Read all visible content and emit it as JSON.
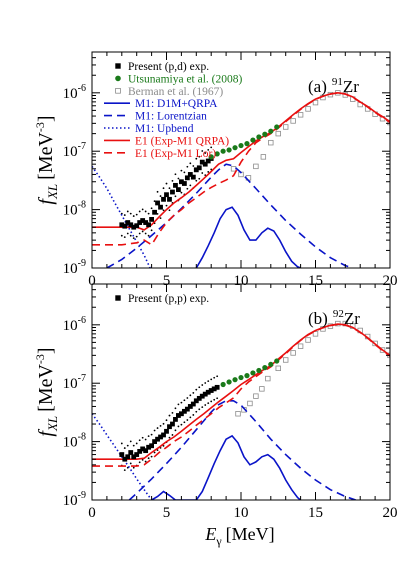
{
  "figure": {
    "xlabel_symbol": "E",
    "xlabel_subscript": "γ",
    "xlabel_unit": "[MeV]",
    "ylabel_symbol": "f",
    "ylabel_subscript": "XL",
    "ylabel_unit": "[MeV",
    "ylabel_exponent": "-3",
    "ylabel_close": "]"
  },
  "colors": {
    "black": "#000000",
    "green": "#1a7a1a",
    "gray": "#8c8c8c",
    "blue": "#0a14c8",
    "red": "#e81010"
  },
  "chart_data": [
    {
      "type": "line",
      "panel_label": "(a)",
      "nucleus_mass": "91",
      "nucleus_symbol": "Zr",
      "xlim": [
        0,
        20
      ],
      "ylim": [
        1e-09,
        5e-06
      ],
      "yscale": "log",
      "xticks": [
        "0",
        "5",
        "10",
        "15",
        "20"
      ],
      "yticks": [
        {
          "value": 1e-09,
          "mant": "10",
          "exp": "-9"
        },
        {
          "value": 1e-08,
          "mant": "10",
          "exp": "-8"
        },
        {
          "value": 1e-07,
          "mant": "10",
          "exp": "-7"
        },
        {
          "value": 1e-06,
          "mant": "10",
          "exp": "-6"
        }
      ],
      "legend_position": "top-left",
      "legend": [
        {
          "key": "present",
          "label": "Present (p,d) exp.",
          "marker": "square-filled",
          "color": "#000000"
        },
        {
          "key": "utsunomiya",
          "label": "Utsunamiya et al. (2008)",
          "marker": "circle-filled",
          "color": "#1a7a1a"
        },
        {
          "key": "berman",
          "label": "Berman et al. (1967)",
          "marker": "square-open",
          "color": "#8c8c8c"
        },
        {
          "key": "m1_qrpa",
          "label": "M1: D1M+QRPA",
          "dash": "solid",
          "color": "#0a14c8"
        },
        {
          "key": "m1_lor",
          "label": "M1: Lorentzian",
          "dash": "dashed",
          "color": "#0a14c8"
        },
        {
          "key": "m1_upbend",
          "label": "M1: Upbend",
          "dash": "dotted",
          "color": "#0a14c8"
        },
        {
          "key": "e1_qrpa",
          "label": "E1 (Exp-M1 QRPA)",
          "dash": "solid",
          "color": "#e81010"
        },
        {
          "key": "e1_lor",
          "label": "E1 (Exp-M1 Lor)",
          "dash": "dashed",
          "color": "#e81010"
        }
      ],
      "series": {
        "present": {
          "x": [
            2.0,
            2.2,
            2.4,
            2.6,
            2.8,
            3.0,
            3.2,
            3.4,
            3.6,
            3.8,
            4.0,
            4.2,
            4.4,
            4.6,
            4.8,
            5.0,
            5.2,
            5.4,
            5.6,
            5.8,
            6.0,
            6.2,
            6.4,
            6.6,
            6.8,
            7.0,
            7.2,
            7.4,
            7.6,
            7.8,
            8.0
          ],
          "y": [
            5.5e-09,
            5.2e-09,
            6e-09,
            5.5e-09,
            5e-09,
            5.3e-09,
            6e-09,
            6.5e-09,
            6e-09,
            5.5e-09,
            6.8e-09,
            9e-09,
            1.3e-08,
            1.1e-08,
            1.5e-08,
            1.8e-08,
            1.5e-08,
            2e-08,
            2.6e-08,
            2.2e-08,
            3e-08,
            2.8e-08,
            3.5e-08,
            4e-08,
            3.6e-08,
            4.8e-08,
            5.2e-08,
            6.5e-08,
            6e-08,
            6.8e-08,
            7.5e-08
          ]
        },
        "utsunomiya": {
          "x": [
            8.0,
            8.4,
            8.8,
            9.2,
            9.6,
            10.0,
            10.4,
            10.8,
            11.2,
            11.6,
            12.0,
            12.4
          ],
          "y": [
            8e-08,
            9e-08,
            1e-07,
            1.05e-07,
            1.15e-07,
            1.25e-07,
            1.35e-07,
            1.55e-07,
            1.75e-07,
            1.95e-07,
            2.2e-07,
            2.6e-07
          ]
        },
        "berman": {
          "x": [
            9.5,
            10.0,
            10.5,
            11.0,
            11.5,
            12.0,
            12.5,
            13.0,
            13.5,
            14.0,
            14.5,
            15.0,
            15.5,
            16.0,
            16.5,
            17.0,
            17.5,
            18.0,
            18.5,
            19.0,
            19.5,
            20.0
          ],
          "y": [
            5e-08,
            4e-08,
            3.5e-08,
            5.5e-08,
            8e-08,
            1.4e-07,
            2e-07,
            2.6e-07,
            3.3e-07,
            4.2e-07,
            5.3e-07,
            6.8e-07,
            8.3e-07,
            9.3e-07,
            1e-06,
            9.2e-07,
            7.8e-07,
            6.3e-07,
            5.3e-07,
            4.3e-07,
            3.6e-07,
            3.1e-07
          ]
        },
        "m1_qrpa": {
          "x": [
            7.0,
            7.4,
            7.8,
            8.2,
            8.6,
            9.0,
            9.4,
            9.8,
            10.2,
            10.6,
            11.0,
            11.4,
            11.8,
            12.2,
            12.6,
            13.0,
            13.4,
            13.8,
            14.0
          ],
          "y": [
            1e-09,
            1.5e-09,
            2.4e-09,
            4e-09,
            7e-09,
            1e-08,
            1.1e-08,
            8e-09,
            4.5e-09,
            3e-09,
            3e-09,
            4e-09,
            4.8e-09,
            4.3e-09,
            3e-09,
            1.9e-09,
            1.3e-09,
            1.05e-09,
            1e-09
          ]
        },
        "m1_lor": {
          "x": [
            1.0,
            2.0,
            3.0,
            4.0,
            5.0,
            6.0,
            7.0,
            8.0,
            8.5,
            9.0,
            9.5,
            10.0,
            11.0,
            12.0,
            13.0,
            14.0,
            15.0,
            16.0,
            17.0,
            17.5
          ],
          "y": [
            1e-09,
            1.4e-09,
            2.2e-09,
            3.6e-09,
            6e-09,
            1.05e-08,
            1.9e-08,
            3.6e-08,
            4.8e-08,
            6e-08,
            5.6e-08,
            4.3e-08,
            2.3e-08,
            1.2e-08,
            6.5e-09,
            3.8e-09,
            2.3e-09,
            1.5e-09,
            1.1e-09,
            1e-09
          ]
        },
        "m1_upbend": {
          "x": [
            0.0,
            0.5,
            1.0,
            1.5,
            2.0,
            2.5,
            3.0,
            3.5,
            3.9
          ],
          "y": [
            5.5e-08,
            3.6e-08,
            2.3e-08,
            1.35e-08,
            8e-09,
            4.7e-09,
            2.8e-09,
            1.65e-09,
            1e-09
          ]
        },
        "e1_qrpa": {
          "x": [
            0.0,
            1.0,
            2.0,
            3.0,
            3.5,
            4.0,
            4.5,
            5.0,
            5.5,
            6.0,
            6.5,
            7.0,
            7.5,
            8.0,
            8.5,
            9.0,
            9.5,
            10.0,
            10.5,
            11.0,
            11.5,
            12.0,
            12.5,
            13.0,
            13.5,
            14.0,
            14.5,
            15.0,
            15.5,
            16.0,
            16.5,
            17.0,
            17.5,
            18.0,
            18.5,
            19.0,
            19.5,
            20.0
          ],
          "y": [
            5e-09,
            5e-09,
            5e-09,
            5e-09,
            4.5e-09,
            5.5e-09,
            7.5e-09,
            1e-08,
            1.3e-08,
            1.6e-08,
            2e-08,
            2.6e-08,
            3.4e-08,
            4.5e-08,
            6e-08,
            7e-08,
            7.4e-08,
            9.5e-08,
            1.2e-07,
            1.5e-07,
            1.8e-07,
            2.1e-07,
            2.6e-07,
            3.3e-07,
            4.2e-07,
            5.3e-07,
            6.5e-07,
            7.8e-07,
            8.8e-07,
            9.6e-07,
            1e-06,
            9.6e-07,
            8.5e-07,
            7e-07,
            5.8e-07,
            4.7e-07,
            3.9e-07,
            3.2e-07
          ]
        },
        "e1_lor": {
          "x": [
            0.0,
            1.0,
            2.0,
            3.0,
            3.5,
            4.0,
            4.5,
            5.0,
            5.5,
            6.0,
            6.5,
            7.0,
            7.5,
            8.0,
            8.5,
            9.0,
            9.5,
            10.0,
            10.5,
            11.0,
            11.5,
            12.0,
            12.5,
            13.0,
            13.5,
            14.0,
            14.5,
            15.0,
            15.5,
            16.0,
            16.5,
            17.0,
            17.5,
            18.0,
            18.5,
            19.0,
            19.5,
            20.0
          ],
          "y": [
            2.5e-09,
            2.5e-09,
            2.5e-09,
            2.7e-09,
            3e-09,
            2.5e-09,
            4e-09,
            6e-09,
            8e-09,
            1e-08,
            1.3e-08,
            1.6e-08,
            2e-08,
            2.4e-08,
            2.8e-08,
            3.2e-08,
            3.8e-08,
            6.5e-08,
            1e-07,
            1.4e-07,
            1.7e-07,
            2e-07,
            2.5e-07,
            3.2e-07,
            4.1e-07,
            5.2e-07,
            6.4e-07,
            7.7e-07,
            8.7e-07,
            9.5e-07,
            1e-06,
            9.5e-07,
            8.4e-07,
            6.9e-07,
            5.7e-07,
            4.6e-07,
            3.8e-07,
            3.1e-07
          ]
        }
      }
    },
    {
      "type": "line",
      "panel_label": "(b)",
      "nucleus_mass": "92",
      "nucleus_symbol": "Zr",
      "xlim": [
        0,
        20
      ],
      "ylim": [
        1e-09,
        5e-06
      ],
      "yscale": "log",
      "xticks": [
        "0",
        "5",
        "10",
        "15",
        "20"
      ],
      "yticks": [
        {
          "value": 1e-09,
          "mant": "10",
          "exp": "-9"
        },
        {
          "value": 1e-08,
          "mant": "10",
          "exp": "-8"
        },
        {
          "value": 1e-07,
          "mant": "10",
          "exp": "-7"
        },
        {
          "value": 1e-06,
          "mant": "10",
          "exp": "-6"
        }
      ],
      "legend_position": "top-left",
      "legend": [
        {
          "key": "present",
          "label": "Present (p,p) exp.",
          "marker": "square-filled",
          "color": "#000000"
        }
      ],
      "series": {
        "present": {
          "x": [
            2.0,
            2.2,
            2.4,
            2.6,
            2.8,
            3.0,
            3.2,
            3.4,
            3.6,
            3.8,
            4.0,
            4.2,
            4.4,
            4.6,
            4.8,
            5.0,
            5.2,
            5.4,
            5.6,
            5.8,
            6.0,
            6.2,
            6.4,
            6.6,
            6.8,
            7.0,
            7.2,
            7.4,
            7.6,
            7.8,
            8.0,
            8.2,
            8.4
          ],
          "y": [
            6e-09,
            5e-09,
            5.5e-09,
            6.5e-09,
            5.5e-09,
            6e-09,
            6.8e-09,
            7.5e-09,
            7e-09,
            8e-09,
            8.5e-09,
            1e-08,
            1.1e-08,
            1.2e-08,
            1.3e-08,
            1.5e-08,
            1.8e-08,
            2e-08,
            2.4e-08,
            2.8e-08,
            3e-08,
            3.3e-08,
            3.6e-08,
            4e-08,
            4.4e-08,
            5e-08,
            5.5e-08,
            6e-08,
            6.5e-08,
            7e-08,
            7.5e-08,
            8e-08,
            8.5e-08
          ]
        },
        "utsunomiya": {
          "x": [
            8.8,
            9.2,
            9.6,
            10.0,
            10.4,
            10.8,
            11.2,
            11.6,
            12.0,
            12.4
          ],
          "y": [
            9.5e-08,
            1.05e-07,
            1.15e-07,
            1.25e-07,
            1.35e-07,
            1.5e-07,
            1.65e-07,
            1.85e-07,
            2.1e-07,
            2.4e-07
          ]
        },
        "berman": {
          "x": [
            9.8,
            10.2,
            10.6,
            11.0,
            11.4,
            11.8,
            12.5,
            13.0,
            13.5,
            14.0,
            14.5,
            15.0,
            15.5,
            16.0,
            16.5,
            17.0,
            17.5,
            18.0,
            18.5,
            19.0,
            19.5,
            20.0
          ],
          "y": [
            3e-08,
            3.5e-08,
            4.5e-08,
            6e-08,
            8e-08,
            1.2e-07,
            1.8e-07,
            2.5e-07,
            3.3e-07,
            4.3e-07,
            5.5e-07,
            7e-07,
            8.5e-07,
            9.5e-07,
            1.05e-06,
            1.05e-06,
            9.5e-07,
            8e-07,
            6.3e-07,
            4.8e-07,
            3.7e-07,
            3e-07
          ]
        },
        "m1_qrpa": {
          "x": [
            4.0,
            4.4,
            4.8,
            5.2,
            5.6,
            6.0,
            7.0,
            7.4,
            7.8,
            8.2,
            8.6,
            9.0,
            9.4,
            9.8,
            10.2,
            10.6,
            11.0,
            11.4,
            11.8,
            12.2,
            12.6,
            13.0,
            13.4,
            13.8,
            14.0
          ],
          "y": [
            1e-09,
            1.15e-09,
            1.4e-09,
            1.2e-09,
            1e-09,
            1e-09,
            1e-09,
            1.4e-09,
            2.4e-09,
            4.2e-09,
            7e-09,
            1.1e-08,
            1.25e-08,
            9.5e-09,
            5.5e-09,
            4e-09,
            4.5e-09,
            5.5e-09,
            6e-09,
            5e-09,
            3.5e-09,
            2.2e-09,
            1.5e-09,
            1.1e-09,
            1e-09
          ]
        },
        "m1_lor": {
          "x": [
            2.5,
            3.0,
            4.0,
            5.0,
            6.0,
            7.0,
            8.0,
            8.5,
            9.0,
            9.5,
            10.0,
            11.0,
            12.0,
            13.0,
            14.0,
            15.0,
            16.0,
            17.0,
            17.7
          ],
          "y": [
            1e-09,
            1.3e-09,
            2.3e-09,
            4.2e-09,
            8e-09,
            1.6e-08,
            3.2e-08,
            4.3e-08,
            5e-08,
            5e-08,
            4.2e-08,
            2.2e-08,
            1.1e-08,
            6e-09,
            3.5e-09,
            2.2e-09,
            1.5e-09,
            1.15e-09,
            1e-09
          ]
        },
        "m1_upbend": {
          "x": [
            0.0,
            0.5,
            1.0,
            1.5,
            2.0,
            2.5,
            3.0,
            3.5,
            4.0
          ],
          "y": [
            3e-08,
            2e-08,
            1.3e-08,
            8.5e-09,
            5.5e-09,
            3.6e-09,
            2.3e-09,
            1.5e-09,
            1e-09
          ]
        },
        "e1_qrpa": {
          "x": [
            0.0,
            1.0,
            2.0,
            3.0,
            3.5,
            4.0,
            4.5,
            5.0,
            5.5,
            6.0,
            6.5,
            7.0,
            7.5,
            8.0,
            8.5,
            9.0,
            9.5,
            10.0,
            10.5,
            11.0,
            11.5,
            12.0,
            12.5,
            13.0,
            13.5,
            14.0,
            14.5,
            15.0,
            15.5,
            16.0,
            16.5,
            17.0,
            17.5,
            18.0,
            18.5,
            19.0,
            19.5,
            20.0
          ],
          "y": [
            5e-09,
            5e-09,
            5e-09,
            5e-09,
            5.2e-09,
            6.5e-09,
            8e-09,
            1e-08,
            1.2e-08,
            1.5e-08,
            1.9e-08,
            2.4e-08,
            3e-08,
            3.8e-08,
            4.8e-08,
            6e-08,
            7.5e-08,
            9.5e-08,
            1.15e-07,
            1.4e-07,
            1.7e-07,
            2e-07,
            2.6e-07,
            3.3e-07,
            4.3e-07,
            5.5e-07,
            6.8e-07,
            8e-07,
            9e-07,
            9.8e-07,
            1.03e-06,
            1e-06,
            9e-07,
            7.5e-07,
            6e-07,
            4.7e-07,
            3.7e-07,
            3e-07
          ]
        },
        "e1_lor": {
          "x": [
            0.0,
            1.0,
            2.0,
            3.0,
            3.5,
            4.0,
            4.5,
            5.0,
            5.5,
            6.0,
            6.5,
            7.0,
            7.5,
            8.0,
            8.5,
            9.0,
            9.5,
            10.0,
            10.5,
            11.0,
            11.5,
            12.0,
            12.5,
            13.0,
            13.5,
            14.0,
            14.5,
            15.0,
            15.5,
            16.0,
            16.5,
            17.0,
            17.5,
            18.0,
            18.5,
            19.0,
            19.5,
            20.0
          ],
          "y": [
            3.8e-09,
            3.8e-09,
            3.8e-09,
            3.8e-09,
            4e-09,
            5e-09,
            6.5e-09,
            8e-09,
            1e-08,
            1.2e-08,
            1.5e-08,
            1.9e-08,
            2.4e-08,
            3e-08,
            3.8e-08,
            4.6e-08,
            5.6e-08,
            8e-08,
            1.05e-07,
            1.3e-07,
            1.6e-07,
            1.9e-07,
            2.5e-07,
            3.2e-07,
            4.2e-07,
            5.4e-07,
            6.7e-07,
            7.9e-07,
            8.9e-07,
            9.7e-07,
            1.02e-06,
            9.9e-07,
            8.9e-07,
            7.4e-07,
            5.9e-07,
            4.6e-07,
            3.6e-07,
            2.9e-07
          ]
        }
      }
    }
  ]
}
